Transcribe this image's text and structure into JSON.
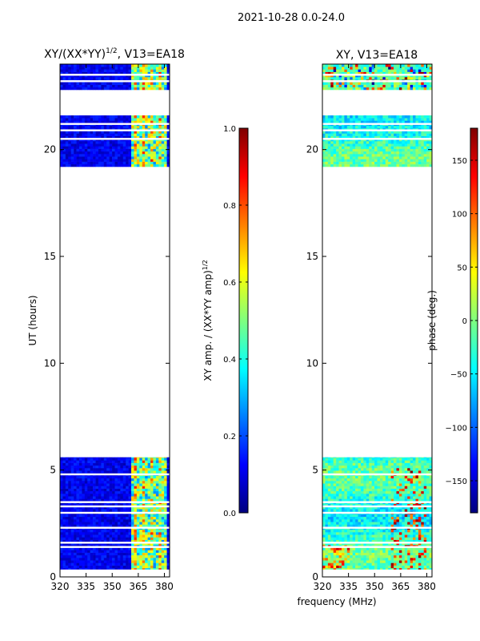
{
  "figure": {
    "suptitle": "2021-10-28 0.0-24.0",
    "shared_xlabel": "frequency (MHz)",
    "colors": {
      "jet": [
        "#00007f",
        "#0000ff",
        "#007fff",
        "#00ffff",
        "#7fff7f",
        "#ffff00",
        "#ff7f00",
        "#ff0000",
        "#7f0000"
      ],
      "background": "#ffffff",
      "axis": "#000000"
    }
  },
  "chart_data": [
    {
      "type": "heatmap",
      "title_main": "XY/(XX*YY)",
      "title_exp": "1/2",
      "title_tail": ", V13=EA18",
      "xlabel": "",
      "ylabel": "UT (hours)",
      "xlim": [
        320,
        383
      ],
      "ylim": [
        0,
        24
      ],
      "xticks": [
        320,
        335,
        350,
        365,
        380
      ],
      "yticks": [
        0,
        5,
        10,
        15,
        20
      ],
      "data_bands_hours": [
        [
          0.3,
          5.6
        ],
        [
          19.2,
          21.6
        ],
        [
          22.8,
          24.0
        ]
      ],
      "blank_rows_hours": [
        0.3,
        1.4,
        1.6,
        2.3,
        3.0,
        3.3,
        3.5,
        4.8,
        20.5,
        20.9,
        21.2,
        23.2,
        23.5
      ],
      "highlight_band_mhz": [
        361,
        381
      ],
      "colorbar": {
        "label_main": "XY amp. / (XX*YY amp)",
        "label_exp": "1/2",
        "range": [
          0.0,
          1.0
        ],
        "ticks": [
          "0.0",
          "0.2",
          "0.4",
          "0.6",
          "0.8",
          "1.0"
        ],
        "tick_values": [
          0.0,
          0.2,
          0.4,
          0.6,
          0.8,
          1.0
        ]
      }
    },
    {
      "type": "heatmap",
      "title": "XY, V13=EA18",
      "xlabel": "frequency (MHz)",
      "ylabel": "",
      "xlim": [
        320,
        383
      ],
      "ylim": [
        0,
        24
      ],
      "xticks": [
        320,
        335,
        350,
        365,
        380
      ],
      "yticks": [
        0,
        5,
        10,
        15,
        20
      ],
      "data_bands_hours": [
        [
          0.3,
          5.6
        ],
        [
          19.2,
          21.6
        ],
        [
          22.8,
          24.0
        ]
      ],
      "blank_rows_hours": [
        0.3,
        1.4,
        1.6,
        2.3,
        3.0,
        3.3,
        3.5,
        4.8,
        20.5,
        20.9,
        21.2,
        23.2,
        23.5
      ],
      "colorbar": {
        "label": "phase (deg.)",
        "range": [
          -180,
          180
        ],
        "ticks": [
          "−150",
          "−100",
          "−50",
          "0",
          "50",
          "100",
          "150"
        ],
        "tick_values": [
          -150,
          -100,
          -50,
          0,
          50,
          100,
          150
        ]
      }
    }
  ]
}
